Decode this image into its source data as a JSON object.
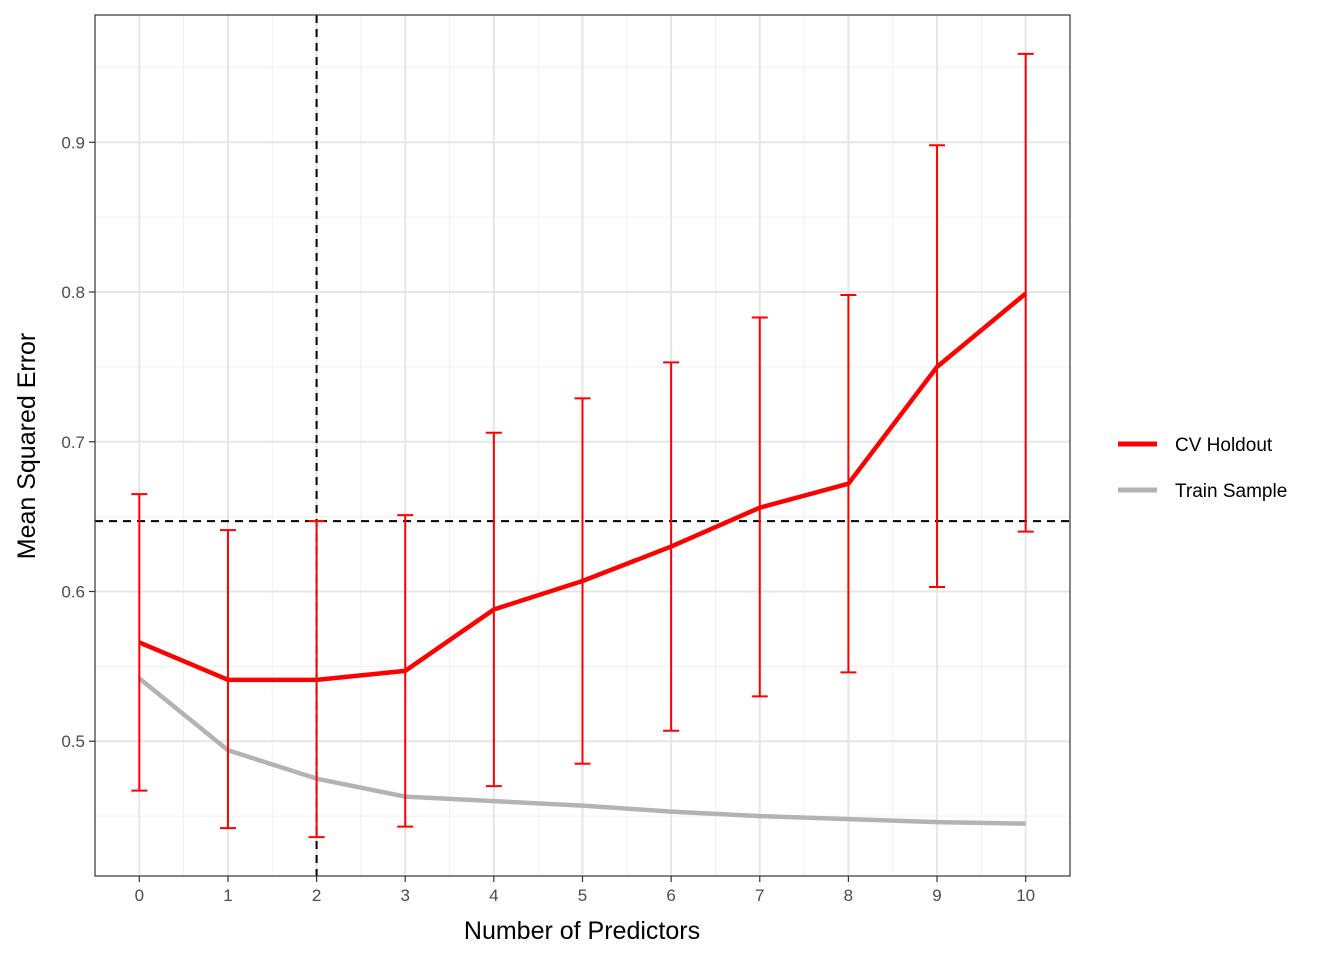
{
  "chart_data": {
    "type": "line",
    "xlabel": "Number of Predictors",
    "ylabel": "Mean Squared Error",
    "x": [
      0,
      1,
      2,
      3,
      4,
      5,
      6,
      7,
      8,
      9,
      10
    ],
    "xlim": [
      -0.5,
      10.5
    ],
    "ylim": [
      0.41,
      0.985
    ],
    "x_ticks": [
      "0",
      "1",
      "2",
      "3",
      "4",
      "5",
      "6",
      "7",
      "8",
      "9",
      "10"
    ],
    "y_ticks": [
      "0.5",
      "0.6",
      "0.7",
      "0.8",
      "0.9"
    ],
    "grid": true,
    "legend_position": "right",
    "series": [
      {
        "name": "CV Holdout",
        "color": "#ff0000",
        "values": [
          0.566,
          0.541,
          0.541,
          0.547,
          0.588,
          0.607,
          0.63,
          0.656,
          0.672,
          0.75,
          0.799
        ],
        "error_lower": [
          0.467,
          0.442,
          0.436,
          0.443,
          0.47,
          0.485,
          0.507,
          0.53,
          0.546,
          0.603,
          0.64
        ],
        "error_upper": [
          0.665,
          0.641,
          0.647,
          0.651,
          0.706,
          0.729,
          0.753,
          0.783,
          0.798,
          0.898,
          0.959
        ]
      },
      {
        "name": "Train Sample",
        "color": "#b3b3b3",
        "values": [
          0.542,
          0.494,
          0.475,
          0.463,
          0.46,
          0.457,
          0.453,
          0.45,
          0.448,
          0.446,
          0.445
        ]
      }
    ],
    "reference_lines": {
      "horizontal_y": 0.647,
      "vertical_x": 2
    }
  }
}
